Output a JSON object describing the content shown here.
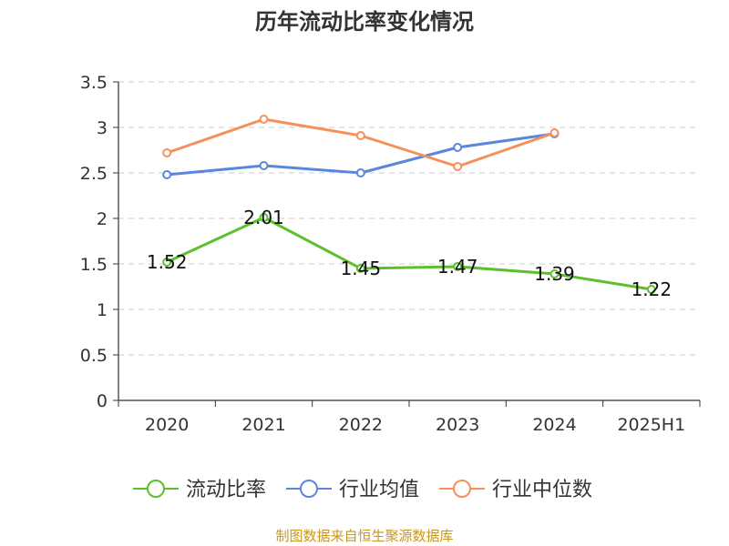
{
  "chart_data": {
    "type": "line",
    "title": "历年流动比率变化情况",
    "xlabel": "",
    "ylabel": "",
    "categories": [
      "2020",
      "2021",
      "2022",
      "2023",
      "2024",
      "2025H1"
    ],
    "ylim": [
      0,
      3.5
    ],
    "yticks": [
      "0",
      "0.5",
      "1",
      "1.5",
      "2",
      "2.5",
      "3",
      "3.5"
    ],
    "ytick_values": [
      0,
      0.5,
      1,
      1.5,
      2,
      2.5,
      3,
      3.5
    ],
    "grid": true,
    "legend_position": "bottom",
    "series": [
      {
        "name": "流动比率",
        "color": "#5bc02b",
        "show_labels": true,
        "values": [
          1.52,
          2.01,
          1.45,
          1.47,
          1.39,
          1.22
        ],
        "labels": [
          "1.52",
          "2.01",
          "1.45",
          "1.47",
          "1.39",
          "1.22"
        ]
      },
      {
        "name": "行业均值",
        "color": "#5b86dd",
        "show_labels": false,
        "values": [
          2.48,
          2.58,
          2.5,
          2.78,
          2.93,
          null
        ]
      },
      {
        "name": "行业中位数",
        "color": "#f5905a",
        "show_labels": false,
        "values": [
          2.72,
          3.09,
          2.91,
          2.57,
          2.94,
          null
        ]
      }
    ]
  },
  "source": "制图数据来自恒生聚源数据库"
}
